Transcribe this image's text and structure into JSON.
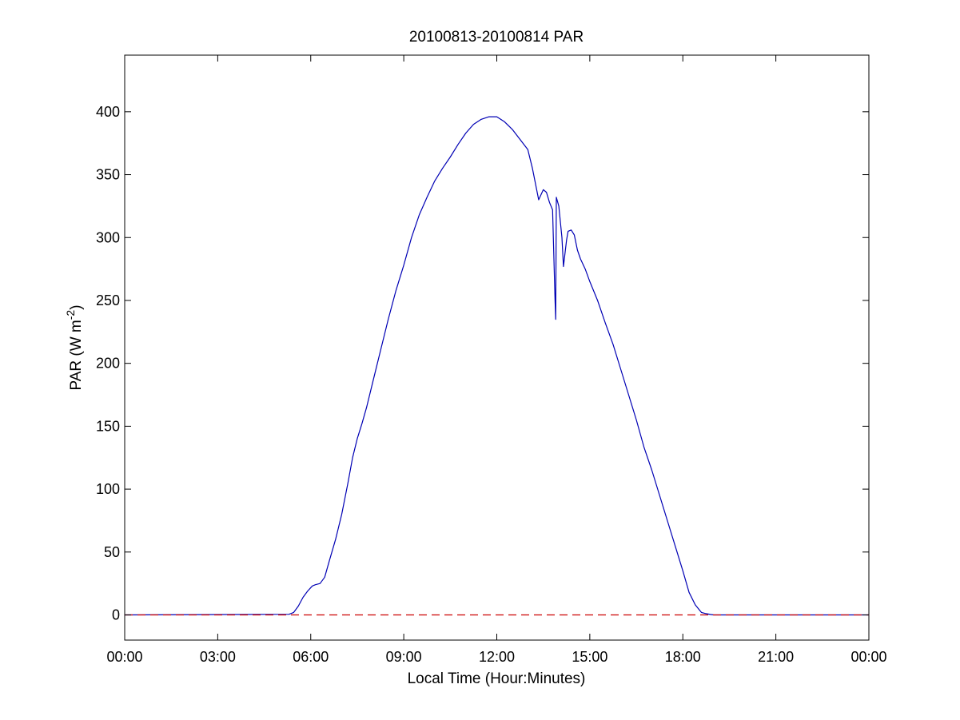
{
  "chart_data": {
    "type": "line",
    "title": "20100813-20100814 PAR",
    "xlabel": "Local Time (Hour:Minutes)",
    "ylabel": {
      "base": "PAR (W m",
      "superscript": "-2",
      "suffix": ")"
    },
    "xlim": [
      0,
      24
    ],
    "ylim": [
      -20,
      445
    ],
    "x_ticks": [
      {
        "value": 0,
        "label": "00:00"
      },
      {
        "value": 3,
        "label": "03:00"
      },
      {
        "value": 6,
        "label": "06:00"
      },
      {
        "value": 9,
        "label": "09:00"
      },
      {
        "value": 12,
        "label": "12:00"
      },
      {
        "value": 15,
        "label": "15:00"
      },
      {
        "value": 18,
        "label": "18:00"
      },
      {
        "value": 21,
        "label": "21:00"
      },
      {
        "value": 24,
        "label": "00:00"
      }
    ],
    "y_ticks": [
      {
        "value": 0,
        "label": "0"
      },
      {
        "value": 50,
        "label": "50"
      },
      {
        "value": 100,
        "label": "100"
      },
      {
        "value": 150,
        "label": "150"
      },
      {
        "value": 200,
        "label": "200"
      },
      {
        "value": 250,
        "label": "250"
      },
      {
        "value": 300,
        "label": "300"
      },
      {
        "value": 350,
        "label": "350"
      },
      {
        "value": 400,
        "label": "400"
      }
    ],
    "grid": false,
    "legend": "none",
    "series": [
      {
        "color": "#0000b4",
        "style": "solid",
        "x": [
          0,
          5.3,
          5.45,
          5.6,
          5.75,
          5.9,
          6.05,
          6.15,
          6.3,
          6.45,
          6.6,
          6.8,
          7.0,
          7.2,
          7.35,
          7.5,
          7.65,
          7.8,
          8.0,
          8.25,
          8.5,
          8.75,
          9.0,
          9.25,
          9.5,
          9.75,
          10.0,
          10.25,
          10.5,
          10.75,
          11.0,
          11.25,
          11.5,
          11.75,
          12.0,
          12.25,
          12.5,
          12.75,
          13.0,
          13.15,
          13.35,
          13.5,
          13.6,
          13.7,
          13.8,
          13.88,
          13.9,
          13.92,
          14.0,
          14.1,
          14.15,
          14.25,
          14.3,
          14.4,
          14.5,
          14.6,
          14.7,
          14.85,
          15.0,
          15.25,
          15.5,
          15.75,
          16.0,
          16.25,
          16.5,
          16.75,
          17.0,
          17.25,
          17.5,
          17.75,
          18.0,
          18.2,
          18.4,
          18.6,
          18.75,
          18.9,
          19.0,
          24
        ],
        "y": [
          0,
          0.5,
          2,
          7,
          14,
          19,
          23,
          24,
          25,
          30,
          43,
          60,
          80,
          105,
          125,
          140,
          152,
          165,
          185,
          210,
          235,
          258,
          278,
          300,
          318,
          332,
          345,
          355,
          364,
          374,
          383,
          390,
          394,
          396,
          396,
          392,
          386,
          378,
          370,
          355,
          330,
          338,
          336,
          328,
          322,
          250,
          235,
          332,
          325,
          300,
          277,
          298,
          305,
          306,
          302,
          290,
          283,
          275,
          265,
          250,
          232,
          215,
          195,
          175,
          155,
          133,
          115,
          95,
          75,
          55,
          35,
          18,
          8,
          2,
          1,
          0.3,
          0,
          0
        ]
      },
      {
        "color": "#cc0000",
        "style": "dashed",
        "x": [
          0,
          24
        ],
        "y": [
          0,
          0
        ]
      }
    ]
  }
}
